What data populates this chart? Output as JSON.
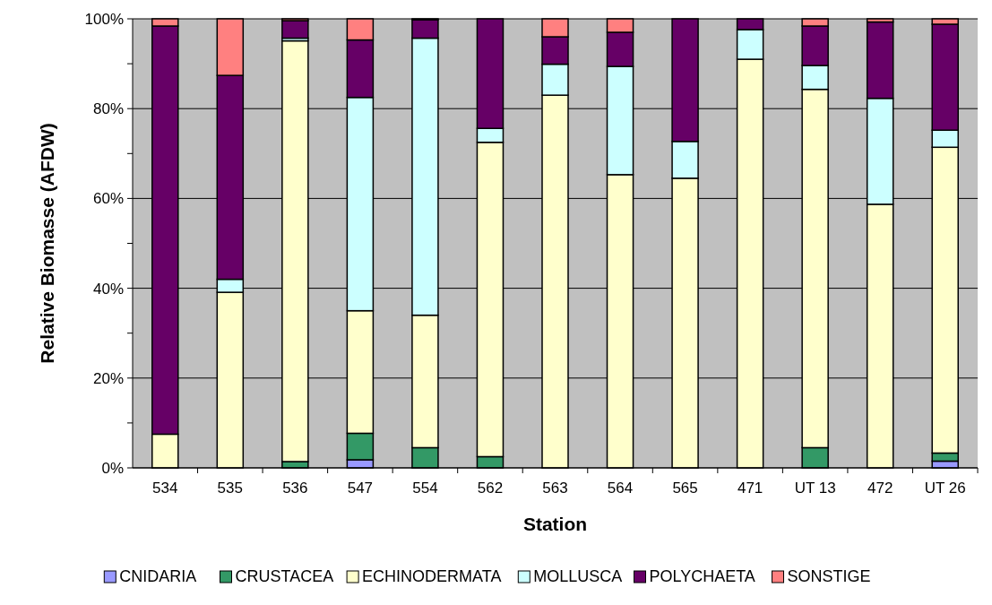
{
  "chart_data": {
    "type": "bar",
    "stacked": true,
    "xlabel": "Station",
    "ylabel": "Relative Biomasse (AFDW)",
    "categories": [
      "534",
      "535",
      "536",
      "547",
      "554",
      "562",
      "563",
      "564",
      "565",
      "471",
      "UT 13",
      "472",
      "UT 26"
    ],
    "series": [
      {
        "name": "CNIDARIA",
        "color": "#9999ff",
        "values": [
          0,
          0,
          0,
          1.8,
          0,
          0,
          0,
          0,
          0,
          0,
          0,
          0,
          1.5
        ]
      },
      {
        "name": "CRUSTACEA",
        "color": "#339966",
        "values": [
          0,
          null,
          1.4,
          5.9,
          4.5,
          2.5,
          null,
          null,
          null,
          0,
          4.5,
          0,
          1.8
        ]
      },
      {
        "name": "ECHINODERMATA",
        "color": "#ffffcc",
        "values": [
          7.5,
          39.1,
          93.7,
          27.3,
          29.5,
          70,
          83,
          65.3,
          64.5,
          91,
          79.8,
          58.7,
          68.1
        ]
      },
      {
        "name": "MOLLUSCA",
        "color": "#ccffff",
        "values": [
          0,
          2.9,
          0.6,
          47.5,
          61.7,
          3.1,
          6.9,
          24.1,
          8.2,
          6.6,
          5.3,
          23.6,
          3.8
        ]
      },
      {
        "name": "POLYCHAETA",
        "color": "#660066",
        "values": [
          90.9,
          45.4,
          3.9,
          12.8,
          4.1,
          24.4,
          6.1,
          7.6,
          27.3,
          2.4,
          8.8,
          17,
          23.6
        ]
      },
      {
        "name": "SONSTIGE",
        "color": "#ff8080",
        "values": [
          1.6,
          12.6,
          0.4,
          4.7,
          0.2,
          0,
          4,
          3,
          0,
          0,
          1.6,
          0.7,
          1.2
        ]
      }
    ],
    "ylim": [
      0,
      100
    ],
    "yticks": [
      {
        "value": 0,
        "label": "0%"
      },
      {
        "value": 10,
        "label": null
      },
      {
        "value": 20,
        "label": "20%"
      },
      {
        "value": 30,
        "label": null
      },
      {
        "value": 40,
        "label": "40%"
      },
      {
        "value": 50,
        "label": null
      },
      {
        "value": 60,
        "label": "60%"
      },
      {
        "value": 70,
        "label": null
      },
      {
        "value": 80,
        "label": "80%"
      },
      {
        "value": 90,
        "label": null
      },
      {
        "value": 100,
        "label": "100%"
      }
    ],
    "grid": "y",
    "legend": "bottom"
  }
}
